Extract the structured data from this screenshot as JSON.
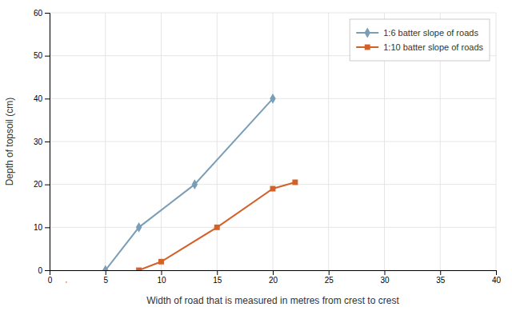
{
  "chart_data": {
    "type": "line",
    "xlabel": "Width of road that is measured in metres from crest to crest",
    "ylabel": "Depth of topsoil (cm)",
    "series": [
      {
        "name": "1:6 batter slope of roads",
        "color": "#7a9eb8",
        "marker": "diamond",
        "x": [
          5,
          8,
          13,
          20
        ],
        "values": [
          0,
          10,
          20,
          40
        ]
      },
      {
        "name": "1:10 batter slope of roads",
        "color": "#d2622a",
        "marker": "square",
        "x": [
          8,
          10,
          15,
          20,
          22
        ],
        "values": [
          0,
          2,
          10,
          19,
          20.5
        ]
      }
    ],
    "xlim": [
      0,
      40
    ],
    "ylim": [
      0,
      60
    ],
    "xticks": [
      0,
      5,
      10,
      15,
      20,
      25,
      30,
      35,
      40
    ],
    "yticks": [
      0,
      10,
      20,
      30,
      40,
      50,
      60
    ],
    "grid": true,
    "legend": "upper right",
    "annotations": [
      {
        "text": "'",
        "x": 1.5,
        "y": -2.5
      }
    ]
  }
}
